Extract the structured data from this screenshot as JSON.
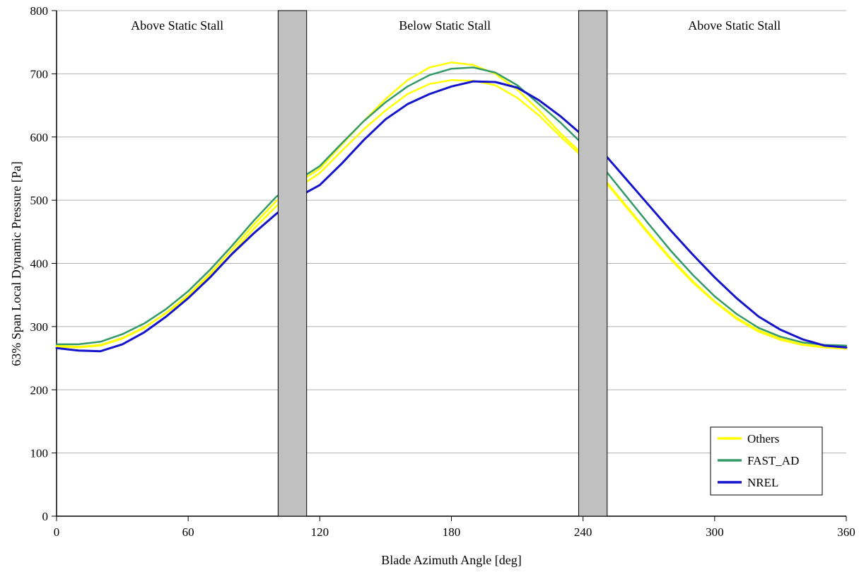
{
  "chart_data": {
    "type": "line",
    "title": "",
    "xlabel": "Blade Azimuth Angle [deg]",
    "ylabel": "63% Span Local Dynamic Pressure [Pa]",
    "xlim": [
      0,
      360
    ],
    "ylim": [
      0,
      800
    ],
    "xticks": [
      0,
      60,
      120,
      180,
      240,
      300,
      360
    ],
    "yticks": [
      0,
      100,
      200,
      300,
      400,
      500,
      600,
      700,
      800
    ],
    "grid": "horizontal",
    "x": [
      0,
      10,
      20,
      30,
      40,
      50,
      60,
      70,
      80,
      90,
      100,
      110,
      120,
      130,
      140,
      150,
      160,
      170,
      180,
      190,
      200,
      210,
      220,
      230,
      240,
      250,
      260,
      270,
      280,
      290,
      300,
      310,
      320,
      330,
      340,
      350,
      360
    ],
    "series": [
      {
        "name": "Others",
        "color": "#ffff00",
        "width": 2.5,
        "values": [
          268,
          267,
          270,
          281,
          298,
          322,
          350,
          384,
          422,
          462,
          498,
          528,
          550,
          588,
          625,
          660,
          690,
          710,
          718,
          714,
          700,
          675,
          642,
          605,
          572,
          532,
          490,
          448,
          408,
          372,
          340,
          314,
          294,
          281,
          272,
          268,
          266
        ]
      },
      {
        "name": "Others",
        "color": "#ffff00",
        "width": 2.5,
        "values": [
          270,
          268,
          271,
          282,
          299,
          321,
          348,
          380,
          416,
          455,
          490,
          520,
          543,
          578,
          612,
          642,
          668,
          684,
          690,
          689,
          682,
          662,
          634,
          600,
          568,
          530,
          488,
          446,
          406,
          370,
          339,
          312,
          292,
          279,
          271,
          267,
          265
        ]
      },
      {
        "name": "FAST_AD",
        "color": "#339966",
        "width": 2.5,
        "values": [
          272,
          272,
          276,
          288,
          305,
          328,
          356,
          390,
          428,
          468,
          505,
          532,
          554,
          590,
          625,
          655,
          680,
          698,
          708,
          710,
          702,
          682,
          652,
          622,
          588,
          548,
          505,
          462,
          420,
          382,
          348,
          320,
          298,
          284,
          275,
          271,
          270
        ]
      },
      {
        "name": "NREL",
        "color": "#1414cc",
        "width": 3,
        "values": [
          266,
          262,
          261,
          272,
          291,
          316,
          345,
          378,
          415,
          448,
          478,
          505,
          524,
          558,
          595,
          628,
          652,
          668,
          680,
          688,
          687,
          678,
          658,
          632,
          602,
          572,
          532,
          492,
          452,
          414,
          378,
          345,
          316,
          295,
          280,
          270,
          267
        ]
      }
    ],
    "shaded_regions": [
      {
        "x_start": 101,
        "x_end": 114,
        "fill": "#c0c0c0",
        "stroke": "#000000"
      },
      {
        "x_start": 238,
        "x_end": 251,
        "fill": "#c0c0c0",
        "stroke": "#000000"
      }
    ],
    "annotations": [
      {
        "text": "Above Static Stall",
        "x": 55,
        "y": 770
      },
      {
        "text": "Below Static Stall",
        "x": 177,
        "y": 770
      },
      {
        "text": "Above Static Stall",
        "x": 309,
        "y": 770
      }
    ],
    "legend": {
      "position": "inside-bottom-right",
      "entries": [
        {
          "label": "Others",
          "color": "#ffff00"
        },
        {
          "label": "FAST_AD",
          "color": "#339966"
        },
        {
          "label": "NREL",
          "color": "#1414cc"
        }
      ]
    }
  }
}
